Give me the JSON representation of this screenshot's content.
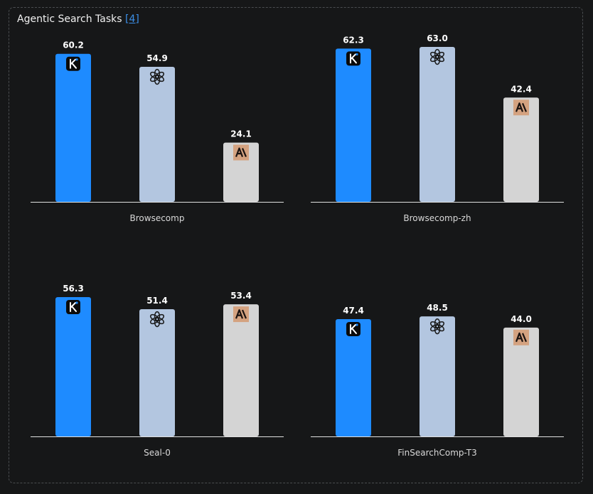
{
  "header": {
    "title": "Agentic Search Tasks",
    "ref": "[4]"
  },
  "colors": {
    "kimi": "#1e8bff",
    "openai": "#b3c6e0",
    "anthropic": "#d4d4d4",
    "anthropic_logo_bg": "#d4a280",
    "baseline": "#e0e0e0"
  },
  "chart_data": [
    {
      "type": "bar",
      "category": "Browsecomp",
      "series": [
        {
          "name": "kimi",
          "icon": "kimi-logo-icon",
          "value": 60.2
        },
        {
          "name": "openai",
          "icon": "openai-logo-icon",
          "value": 54.9
        },
        {
          "name": "anthropic",
          "icon": "anthropic-logo-icon",
          "value": 24.1
        }
      ],
      "labels": [
        "60.2",
        "54.9",
        "24.1"
      ],
      "ylim": [
        0,
        63
      ]
    },
    {
      "type": "bar",
      "category": "Browsecomp-zh",
      "series": [
        {
          "name": "kimi",
          "icon": "kimi-logo-icon",
          "value": 62.3
        },
        {
          "name": "openai",
          "icon": "openai-logo-icon",
          "value": 63.0
        },
        {
          "name": "anthropic",
          "icon": "anthropic-logo-icon",
          "value": 42.4
        }
      ],
      "labels": [
        "62.3",
        "63.0",
        "42.4"
      ],
      "ylim": [
        0,
        63
      ]
    },
    {
      "type": "bar",
      "category": "Seal-0",
      "series": [
        {
          "name": "kimi",
          "icon": "kimi-logo-icon",
          "value": 56.3
        },
        {
          "name": "openai",
          "icon": "openai-logo-icon",
          "value": 51.4
        },
        {
          "name": "anthropic",
          "icon": "anthropic-logo-icon",
          "value": 53.4
        }
      ],
      "labels": [
        "56.3",
        "51.4",
        "53.4"
      ],
      "ylim": [
        0,
        56.3
      ]
    },
    {
      "type": "bar",
      "category": "FinSearchComp-T3",
      "series": [
        {
          "name": "kimi",
          "icon": "kimi-logo-icon",
          "value": 47.4
        },
        {
          "name": "openai",
          "icon": "openai-logo-icon",
          "value": 48.5
        },
        {
          "name": "anthropic",
          "icon": "anthropic-logo-icon",
          "value": 44.0
        }
      ],
      "labels": [
        "47.4",
        "48.5",
        "44.0"
      ],
      "ylim": [
        0,
        56.3
      ]
    }
  ]
}
